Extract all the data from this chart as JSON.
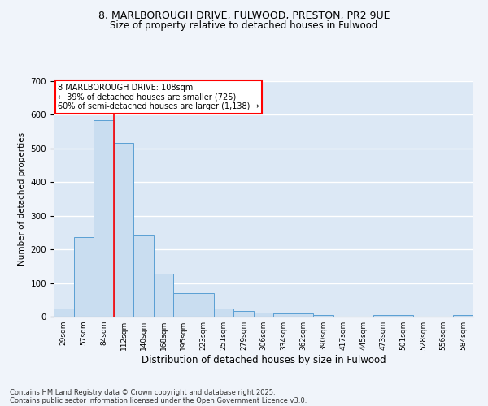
{
  "title_line1": "8, MARLBOROUGH DRIVE, FULWOOD, PRESTON, PR2 9UE",
  "title_line2": "Size of property relative to detached houses in Fulwood",
  "xlabel": "Distribution of detached houses by size in Fulwood",
  "ylabel": "Number of detached properties",
  "categories": [
    "29sqm",
    "57sqm",
    "84sqm",
    "112sqm",
    "140sqm",
    "168sqm",
    "195sqm",
    "223sqm",
    "251sqm",
    "279sqm",
    "306sqm",
    "334sqm",
    "362sqm",
    "390sqm",
    "417sqm",
    "445sqm",
    "473sqm",
    "501sqm",
    "528sqm",
    "556sqm",
    "584sqm"
  ],
  "values": [
    25,
    237,
    583,
    517,
    242,
    128,
    70,
    70,
    25,
    17,
    13,
    10,
    10,
    5,
    0,
    0,
    5,
    5,
    0,
    0,
    5
  ],
  "bar_color": "#c9ddf0",
  "bar_edge_color": "#5a9fd4",
  "redline_index": 2.5,
  "annotation_text": "8 MARLBOROUGH DRIVE: 108sqm\n← 39% of detached houses are smaller (725)\n60% of semi-detached houses are larger (1,138) →",
  "annotation_box_color": "white",
  "annotation_box_edge_color": "red",
  "redline_color": "red",
  "bg_color": "#dce8f5",
  "grid_color": "white",
  "fig_bg_color": "#f0f4fa",
  "ylim": [
    0,
    700
  ],
  "yticks": [
    0,
    100,
    200,
    300,
    400,
    500,
    600,
    700
  ],
  "footnote1": "Contains HM Land Registry data © Crown copyright and database right 2025.",
  "footnote2": "Contains public sector information licensed under the Open Government Licence v3.0."
}
